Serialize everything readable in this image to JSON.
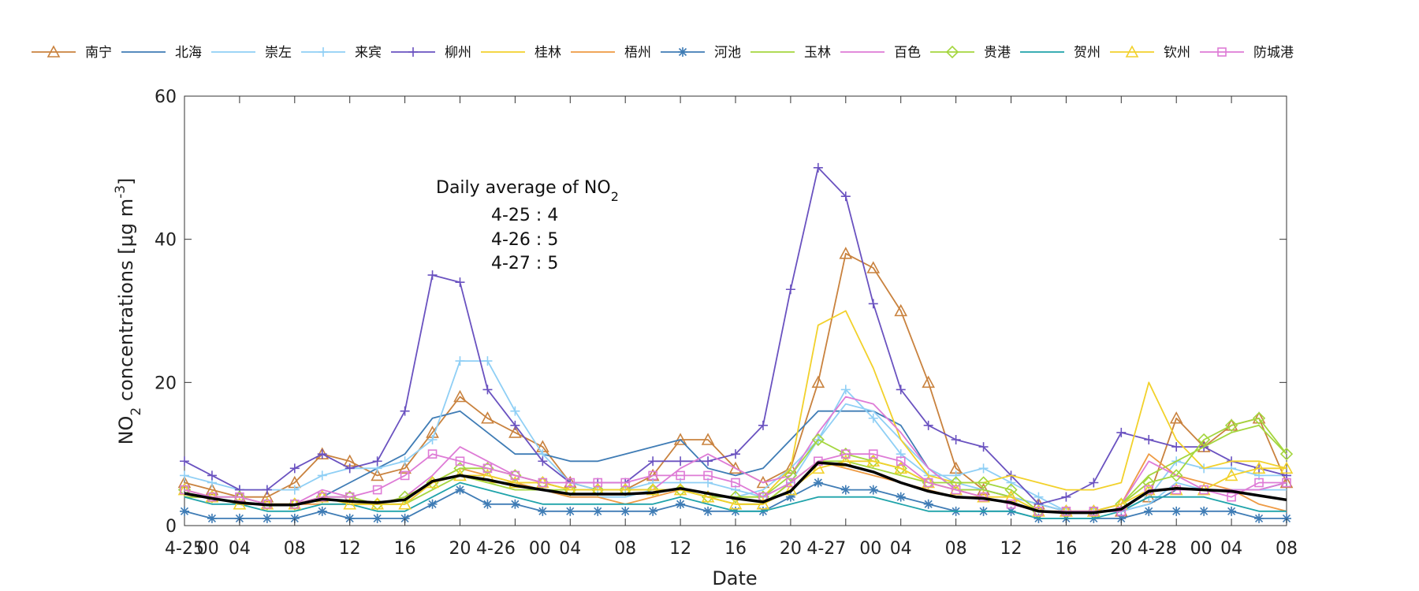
{
  "chart_data": {
    "type": "line",
    "title": "",
    "xlabel": "Date",
    "ylabel_main": "NO",
    "ylabel_sub": "2",
    "ylabel_rest": " concentrations [μg m",
    "ylabel_sup": "-3",
    "ylabel_end": "]",
    "ylim": [
      0,
      60
    ],
    "yticks": [
      0,
      20,
      40,
      60
    ],
    "x_hours": [
      0,
      4,
      8,
      12,
      16,
      20,
      24,
      28,
      32,
      36,
      40,
      44,
      48,
      52,
      56,
      60,
      64,
      68,
      72,
      76,
      80
    ],
    "xtick_labels": [
      "4-25",
      "00",
      "04",
      "08",
      "12",
      "16",
      "20",
      "4-26",
      "00",
      "04",
      "08",
      "12",
      "16",
      "20",
      "4-27",
      "00",
      "04",
      "08",
      "12",
      "16",
      "20",
      "4-28",
      "00",
      "04",
      "08"
    ],
    "xtick_positions": [
      0,
      1.7,
      4,
      8,
      12,
      16,
      20,
      22.6,
      25.8,
      28,
      32,
      36,
      40,
      44,
      46.6,
      49.8,
      52,
      56,
      60,
      64,
      68,
      70.6,
      73.8,
      76,
      80
    ],
    "legend_position": "top",
    "annotation": {
      "title": "Daily average of NO",
      "title_sub": "2",
      "lines": [
        "4-25 : 4",
        "4-26 : 5",
        "4-27 : 5"
      ]
    },
    "x": [
      0,
      2,
      4,
      6,
      8,
      10,
      12,
      14,
      16,
      18,
      20,
      22,
      24,
      26,
      28,
      30,
      32,
      34,
      36,
      38,
      40,
      42,
      44,
      46,
      48,
      50,
      52,
      54,
      56,
      58,
      60,
      62,
      64,
      66,
      68,
      70,
      72,
      74,
      76,
      78,
      80
    ],
    "series": [
      {
        "name": "南宁",
        "color": "#C9823E",
        "marker": "triangle",
        "values": [
          6,
          5,
          4,
          4,
          6,
          10,
          9,
          7,
          8,
          13,
          18,
          15,
          13,
          11,
          6,
          5,
          5,
          7,
          12,
          12,
          8,
          6,
          8,
          20,
          38,
          36,
          30,
          20,
          8,
          5,
          4,
          3,
          2,
          2,
          2,
          4,
          15,
          11,
          14,
          15,
          6
        ]
      },
      {
        "name": "北海",
        "color": "#3F7CB5",
        "marker": "none",
        "values": [
          4,
          4,
          3,
          3,
          3,
          4,
          6,
          8,
          10,
          15,
          16,
          13,
          10,
          10,
          9,
          9,
          10,
          11,
          12,
          8,
          7,
          8,
          12,
          16,
          16,
          16,
          14,
          8,
          5,
          5,
          4,
          3,
          2,
          2,
          2,
          3,
          5,
          5,
          5,
          5,
          6
        ]
      },
      {
        "name": "崇左",
        "color": "#8FCFF5",
        "marker": "none",
        "values": [
          5,
          4,
          4,
          3,
          3,
          4,
          4,
          3,
          3,
          6,
          7,
          7,
          6,
          5,
          4,
          4,
          4,
          5,
          5,
          4,
          4,
          5,
          8,
          12,
          17,
          16,
          12,
          8,
          6,
          5,
          4,
          3,
          2,
          2,
          2,
          3,
          6,
          5,
          5,
          5,
          5
        ]
      },
      {
        "name": "来宾",
        "color": "#8FCFF5",
        "marker": "plus",
        "values": [
          7,
          6,
          5,
          5,
          5,
          7,
          8,
          8,
          9,
          12,
          23,
          23,
          16,
          10,
          6,
          5,
          5,
          6,
          6,
          6,
          5,
          4,
          6,
          12,
          19,
          15,
          10,
          7,
          7,
          8,
          6,
          4,
          2,
          2,
          2,
          4,
          9,
          8,
          8,
          7,
          7
        ]
      },
      {
        "name": "柳州",
        "color": "#6A52C0",
        "marker": "plus",
        "values": [
          9,
          7,
          5,
          5,
          8,
          10,
          8,
          9,
          16,
          35,
          34,
          19,
          14,
          9,
          6,
          6,
          6,
          9,
          9,
          9,
          10,
          14,
          33,
          50,
          46,
          31,
          19,
          14,
          12,
          11,
          7,
          3,
          4,
          6,
          13,
          12,
          11,
          11,
          9,
          8,
          7
        ]
      },
      {
        "name": "桂林",
        "color": "#F2D12B",
        "marker": "none",
        "values": [
          4,
          4,
          3,
          3,
          3,
          4,
          3,
          3,
          4,
          6,
          7,
          6,
          6,
          6,
          5,
          5,
          5,
          5,
          5,
          4,
          4,
          4,
          8,
          28,
          30,
          22,
          12,
          7,
          6,
          6,
          7,
          6,
          5,
          5,
          6,
          20,
          12,
          8,
          9,
          9,
          8
        ]
      },
      {
        "name": "梧州",
        "color": "#EE9A43",
        "marker": "none",
        "values": [
          4,
          4,
          3,
          3,
          3,
          3,
          3,
          3,
          3,
          6,
          8,
          7,
          6,
          5,
          4,
          4,
          3,
          4,
          5,
          4,
          3,
          3,
          6,
          9,
          8,
          7,
          6,
          5,
          4,
          4,
          3,
          2,
          2,
          2,
          3,
          10,
          7,
          6,
          5,
          3,
          2
        ]
      },
      {
        "name": "河池",
        "color": "#3F7CB5",
        "marker": "star",
        "values": [
          2,
          1,
          1,
          1,
          1,
          2,
          1,
          1,
          1,
          3,
          5,
          3,
          3,
          2,
          2,
          2,
          2,
          2,
          3,
          2,
          2,
          2,
          4,
          6,
          5,
          5,
          4,
          3,
          2,
          2,
          2,
          1,
          1,
          1,
          1,
          2,
          2,
          2,
          2,
          1,
          1
        ]
      },
      {
        "name": "玉林",
        "color": "#A4D63E",
        "marker": "none",
        "values": [
          4,
          4,
          3,
          3,
          3,
          4,
          3,
          3,
          3,
          5,
          7,
          6,
          5,
          5,
          5,
          5,
          5,
          5,
          5,
          4,
          3,
          3,
          6,
          9,
          9,
          8,
          7,
          6,
          5,
          5,
          4,
          2,
          2,
          2,
          3,
          7,
          9,
          11,
          13,
          14,
          10
        ]
      },
      {
        "name": "百色",
        "color": "#DE7BD6",
        "marker": "none",
        "values": [
          5,
          4,
          3,
          3,
          3,
          5,
          4,
          3,
          4,
          7,
          11,
          9,
          7,
          6,
          5,
          5,
          5,
          5,
          8,
          10,
          8,
          6,
          7,
          13,
          18,
          17,
          13,
          8,
          5,
          4,
          3,
          2,
          2,
          2,
          3,
          9,
          7,
          5,
          5,
          5,
          6
        ]
      },
      {
        "name": "贵港",
        "color": "#A4D63E",
        "marker": "diamond",
        "values": [
          5,
          4,
          4,
          3,
          3,
          4,
          4,
          3,
          4,
          6,
          8,
          8,
          7,
          6,
          5,
          5,
          5,
          5,
          5,
          4,
          4,
          4,
          7,
          12,
          10,
          9,
          8,
          6,
          6,
          6,
          5,
          2,
          2,
          2,
          3,
          6,
          7,
          12,
          14,
          15,
          10
        ]
      },
      {
        "name": "贺州",
        "color": "#1FA3AA",
        "marker": "none",
        "values": [
          4,
          3,
          3,
          2,
          2,
          3,
          3,
          2,
          2,
          4,
          6,
          5,
          4,
          3,
          3,
          3,
          3,
          3,
          4,
          3,
          2,
          2,
          3,
          4,
          4,
          4,
          3,
          2,
          2,
          2,
          2,
          1,
          1,
          1,
          2,
          4,
          4,
          4,
          3,
          2,
          2
        ]
      },
      {
        "name": "钦州",
        "color": "#F2D12B",
        "marker": "triangle",
        "values": [
          5,
          4,
          3,
          3,
          3,
          4,
          3,
          3,
          3,
          6,
          7,
          7,
          6,
          6,
          5,
          5,
          5,
          5,
          5,
          4,
          3,
          3,
          5,
          8,
          9,
          9,
          8,
          6,
          5,
          4,
          4,
          2,
          2,
          2,
          3,
          5,
          5,
          5,
          7,
          8,
          8
        ]
      },
      {
        "name": "防城港",
        "color": "#DE7BD6",
        "marker": "square",
        "values": [
          5,
          4,
          4,
          3,
          3,
          4,
          4,
          5,
          7,
          10,
          9,
          8,
          7,
          6,
          6,
          6,
          6,
          7,
          7,
          7,
          6,
          4,
          6,
          9,
          10,
          10,
          9,
          6,
          5,
          4,
          3,
          2,
          2,
          2,
          2,
          5,
          5,
          5,
          4,
          6,
          6
        ]
      },
      {
        "name": "",
        "color": "#000000",
        "marker": "none",
        "values": [
          4.5,
          3.8,
          3.2,
          2.9,
          2.9,
          3.7,
          3.4,
          3.2,
          3.6,
          6.2,
          7.0,
          6.4,
          5.6,
          5.0,
          4.4,
          4.4,
          4.4,
          4.6,
          5.2,
          4.5,
          3.8,
          3.3,
          4.8,
          8.8,
          8.5,
          7.5,
          6.0,
          4.8,
          4.0,
          3.8,
          3.2,
          2.0,
          1.8,
          1.8,
          2.3,
          4.8,
          5.2,
          5.0,
          4.8,
          4.2,
          3.6
        ]
      }
    ]
  }
}
